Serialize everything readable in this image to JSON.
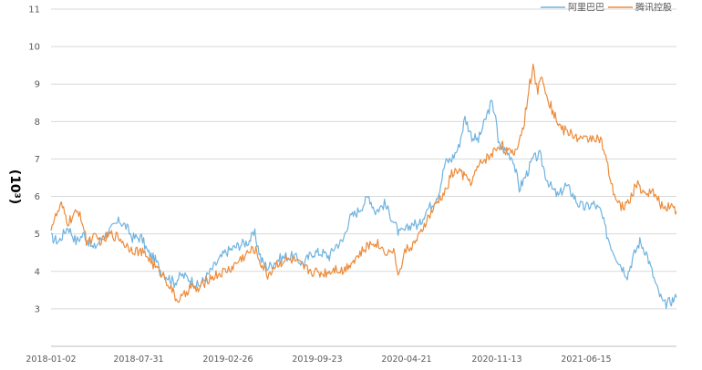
{
  "chart_data": {
    "type": "line",
    "title": "",
    "xlabel": "",
    "ylabel": "(10³)",
    "ylim": [
      2,
      11
    ],
    "yticks": [
      2,
      3,
      4,
      5,
      6,
      7,
      8,
      9,
      10,
      11
    ],
    "ytick_labels": [
      "",
      "3",
      "4",
      "5",
      "6",
      "7",
      "8",
      "9",
      "10",
      "11"
    ],
    "grid": true,
    "legend_position": "top-right",
    "x_tick_labels": [
      "2018-01-02",
      "2018-07-31",
      "2019-02-26",
      "2019-09-23",
      "2020-04-21",
      "2020-11-13",
      "2021-06-15"
    ],
    "series": [
      {
        "name": "阿里巴巴",
        "color": "#6fb3e0",
        "values": [
          [
            "2018-01-02",
            4.9
          ],
          [
            "2018-01-20",
            4.8
          ],
          [
            "2018-02-10",
            5.2
          ],
          [
            "2018-03-01",
            4.8
          ],
          [
            "2018-03-20",
            5.0
          ],
          [
            "2018-04-10",
            4.6
          ],
          [
            "2018-05-01",
            4.9
          ],
          [
            "2018-05-20",
            5.1
          ],
          [
            "2018-06-10",
            5.35
          ],
          [
            "2018-06-25",
            5.2
          ],
          [
            "2018-07-10",
            4.9
          ],
          [
            "2018-07-31",
            4.9
          ],
          [
            "2018-08-15",
            4.5
          ],
          [
            "2018-09-01",
            4.3
          ],
          [
            "2018-09-15",
            4.0
          ],
          [
            "2018-10-01",
            3.85
          ],
          [
            "2018-10-15",
            3.7
          ],
          [
            "2018-11-01",
            3.9
          ],
          [
            "2018-11-20",
            3.8
          ],
          [
            "2018-12-10",
            3.6
          ],
          [
            "2019-01-01",
            3.9
          ],
          [
            "2019-01-20",
            4.2
          ],
          [
            "2019-02-10",
            4.5
          ],
          [
            "2019-02-26",
            4.6
          ],
          [
            "2019-03-15",
            4.7
          ],
          [
            "2019-04-05",
            4.8
          ],
          [
            "2019-04-20",
            5.0
          ],
          [
            "2019-05-05",
            4.3
          ],
          [
            "2019-05-20",
            4.1
          ],
          [
            "2019-06-10",
            4.3
          ],
          [
            "2019-07-01",
            4.4
          ],
          [
            "2019-07-20",
            4.4
          ],
          [
            "2019-08-10",
            4.2
          ],
          [
            "2019-09-01",
            4.5
          ],
          [
            "2019-09-23",
            4.5
          ],
          [
            "2019-10-10",
            4.4
          ],
          [
            "2019-10-25",
            4.7
          ],
          [
            "2019-11-10",
            4.8
          ],
          [
            "2019-11-25",
            5.4
          ],
          [
            "2019-12-15",
            5.6
          ],
          [
            "2020-01-10",
            6.0
          ],
          [
            "2020-01-25",
            5.6
          ],
          [
            "2020-02-15",
            5.8
          ],
          [
            "2020-03-05",
            5.4
          ],
          [
            "2020-03-20",
            5.0
          ],
          [
            "2020-04-05",
            5.1
          ],
          [
            "2020-04-21",
            5.3
          ],
          [
            "2020-05-05",
            5.2
          ],
          [
            "2020-05-20",
            5.6
          ],
          [
            "2020-06-05",
            5.8
          ],
          [
            "2020-06-20",
            6.1
          ],
          [
            "2020-07-05",
            6.9
          ],
          [
            "2020-07-20",
            7.0
          ],
          [
            "2020-08-05",
            7.3
          ],
          [
            "2020-08-20",
            8.1
          ],
          [
            "2020-09-05",
            7.6
          ],
          [
            "2020-09-20",
            7.5
          ],
          [
            "2020-10-05",
            8.0
          ],
          [
            "2020-10-20",
            8.5
          ],
          [
            "2020-10-30",
            8.2
          ],
          [
            "2020-11-05",
            7.4
          ],
          [
            "2020-11-13",
            7.3
          ],
          [
            "2020-11-25",
            7.2
          ],
          [
            "2020-12-10",
            7.0
          ],
          [
            "2020-12-24",
            6.2
          ],
          [
            "2021-01-10",
            6.6
          ],
          [
            "2021-01-25",
            7.0
          ],
          [
            "2021-02-10",
            7.1
          ],
          [
            "2021-02-25",
            6.5
          ],
          [
            "2021-03-10",
            6.2
          ],
          [
            "2021-03-25",
            6.0
          ],
          [
            "2021-04-10",
            6.3
          ],
          [
            "2021-04-25",
            6.1
          ],
          [
            "2021-05-10",
            5.8
          ],
          [
            "2021-05-25",
            5.7
          ],
          [
            "2021-06-15",
            5.8
          ],
          [
            "2021-07-01",
            5.6
          ],
          [
            "2021-07-15",
            5.0
          ],
          [
            "2021-07-28",
            4.6
          ],
          [
            "2021-08-15",
            4.2
          ],
          [
            "2021-09-01",
            3.9
          ],
          [
            "2021-09-15",
            4.4
          ],
          [
            "2021-09-30",
            4.8
          ],
          [
            "2021-10-15",
            4.5
          ],
          [
            "2021-10-28",
            4.0
          ],
          [
            "2021-11-10",
            3.5
          ],
          [
            "2021-11-25",
            3.1
          ],
          [
            "2021-12-10",
            3.2
          ],
          [
            "2021-12-24",
            3.3
          ]
        ]
      },
      {
        "name": "腾讯控股",
        "color": "#ed8b3a",
        "values": [
          [
            "2018-01-02",
            5.2
          ],
          [
            "2018-01-15",
            5.5
          ],
          [
            "2018-01-26",
            5.75
          ],
          [
            "2018-02-10",
            5.3
          ],
          [
            "2018-02-25",
            5.5
          ],
          [
            "2018-03-10",
            5.6
          ],
          [
            "2018-03-25",
            4.8
          ],
          [
            "2018-04-10",
            4.9
          ],
          [
            "2018-05-01",
            4.8
          ],
          [
            "2018-05-20",
            5.0
          ],
          [
            "2018-06-10",
            4.9
          ],
          [
            "2018-06-25",
            4.7
          ],
          [
            "2018-07-10",
            4.6
          ],
          [
            "2018-07-31",
            4.5
          ],
          [
            "2018-08-15",
            4.4
          ],
          [
            "2018-09-01",
            4.1
          ],
          [
            "2018-09-20",
            3.9
          ],
          [
            "2018-10-05",
            3.6
          ],
          [
            "2018-10-20",
            3.25
          ],
          [
            "2018-11-05",
            3.3
          ],
          [
            "2018-11-20",
            3.6
          ],
          [
            "2018-12-10",
            3.5
          ],
          [
            "2019-01-01",
            3.8
          ],
          [
            "2019-01-20",
            3.9
          ],
          [
            "2019-02-10",
            4.0
          ],
          [
            "2019-02-26",
            4.1
          ],
          [
            "2019-03-15",
            4.3
          ],
          [
            "2019-04-05",
            4.5
          ],
          [
            "2019-04-20",
            4.6
          ],
          [
            "2019-05-05",
            4.2
          ],
          [
            "2019-05-20",
            3.9
          ],
          [
            "2019-06-10",
            4.2
          ],
          [
            "2019-07-01",
            4.3
          ],
          [
            "2019-07-20",
            4.3
          ],
          [
            "2019-08-10",
            4.1
          ],
          [
            "2019-09-01",
            4.0
          ],
          [
            "2019-09-23",
            3.95
          ],
          [
            "2019-10-10",
            4.0
          ],
          [
            "2019-10-25",
            4.1
          ],
          [
            "2019-11-10",
            4.0
          ],
          [
            "2019-11-25",
            4.2
          ],
          [
            "2019-12-15",
            4.4
          ],
          [
            "2020-01-10",
            4.7
          ],
          [
            "2020-01-25",
            4.8
          ],
          [
            "2020-02-10",
            4.6
          ],
          [
            "2020-02-25",
            4.5
          ],
          [
            "2020-03-05",
            4.6
          ],
          [
            "2020-03-20",
            3.9
          ],
          [
            "2020-04-05",
            4.6
          ],
          [
            "2020-04-21",
            4.7
          ],
          [
            "2020-05-05",
            4.9
          ],
          [
            "2020-05-20",
            5.3
          ],
          [
            "2020-06-05",
            5.6
          ],
          [
            "2020-06-20",
            5.9
          ],
          [
            "2020-07-05",
            6.1
          ],
          [
            "2020-07-20",
            6.6
          ],
          [
            "2020-08-05",
            6.7
          ],
          [
            "2020-08-20",
            6.5
          ],
          [
            "2020-09-05",
            6.4
          ],
          [
            "2020-09-20",
            6.8
          ],
          [
            "2020-10-05",
            7.0
          ],
          [
            "2020-10-20",
            7.1
          ],
          [
            "2020-11-01",
            7.3
          ],
          [
            "2020-11-13",
            7.4
          ],
          [
            "2020-11-25",
            7.2
          ],
          [
            "2020-12-10",
            7.1
          ],
          [
            "2020-12-24",
            7.5
          ],
          [
            "2021-01-05",
            8.0
          ],
          [
            "2021-01-15",
            8.9
          ],
          [
            "2021-01-25",
            9.4
          ],
          [
            "2021-02-05",
            8.8
          ],
          [
            "2021-02-15",
            9.3
          ],
          [
            "2021-02-28",
            8.6
          ],
          [
            "2021-03-15",
            8.2
          ],
          [
            "2021-04-01",
            7.8
          ],
          [
            "2021-04-20",
            7.7
          ],
          [
            "2021-05-05",
            7.6
          ],
          [
            "2021-05-20",
            7.5
          ],
          [
            "2021-06-15",
            7.6
          ],
          [
            "2021-07-01",
            7.5
          ],
          [
            "2021-07-15",
            6.9
          ],
          [
            "2021-07-28",
            6.2
          ],
          [
            "2021-08-10",
            5.8
          ],
          [
            "2021-08-25",
            5.7
          ],
          [
            "2021-09-10",
            6.0
          ],
          [
            "2021-09-25",
            6.4
          ],
          [
            "2021-10-10",
            6.0
          ],
          [
            "2021-10-25",
            6.2
          ],
          [
            "2021-11-10",
            5.9
          ],
          [
            "2021-11-25",
            5.7
          ],
          [
            "2021-12-10",
            5.8
          ],
          [
            "2021-12-24",
            5.6
          ]
        ]
      }
    ]
  }
}
